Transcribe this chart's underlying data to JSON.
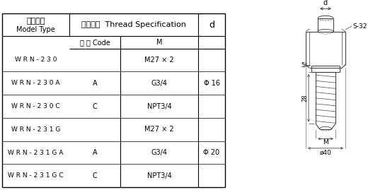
{
  "title_zh": "型号示例",
  "title_en": "Model Type",
  "col2_zh": "螺纹规格  Thread Specification",
  "col2_sub1_zh": "代 号 Code",
  "col2_sub1_en": "M",
  "col3_header": "d",
  "rows": [
    {
      "model": "W R N - 2 3 0",
      "code": "",
      "thread": "M27 × 2",
      "d_label": ""
    },
    {
      "model": "W R N - 2 3 0 A",
      "code": "A",
      "thread": "G3/4",
      "d_label": "Φ 16"
    },
    {
      "model": "W R N - 2 3 0 C",
      "code": "C",
      "thread": "NPT3/4",
      "d_label": ""
    },
    {
      "model": "W R N - 2 3 1 G",
      "code": "",
      "thread": "M27 × 2",
      "d_label": ""
    },
    {
      "model": "W R N - 2 3 1 G A",
      "code": "A",
      "thread": "G3/4",
      "d_label": "Φ 20"
    },
    {
      "model": "W R N - 2 3 1 G C",
      "code": "C",
      "thread": "NPT3/4",
      "d_label": ""
    }
  ],
  "bg_color": "#ffffff",
  "line_color": "#000000",
  "draw_color": "#444444",
  "text_color": "#000000",
  "font_size": 7.0,
  "header_font_size": 8.0
}
